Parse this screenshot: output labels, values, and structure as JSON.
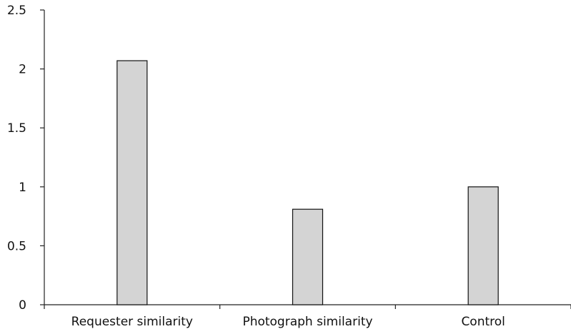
{
  "chart_data": {
    "type": "bar",
    "title": "",
    "xlabel": "",
    "ylabel": "",
    "categories": [
      "Requester similarity",
      "Photograph similarity",
      "Control"
    ],
    "values": [
      2.07,
      0.81,
      1.0
    ],
    "ylim": [
      0,
      2.5
    ],
    "yticks": [
      0,
      0.5,
      1,
      1.5,
      2,
      2.5
    ],
    "ytick_labels": [
      "0",
      "0.5",
      "1",
      "1.5",
      "2",
      "2.5"
    ],
    "grid": false,
    "legend": "none",
    "bar_color": "#d4d4d4",
    "bar_edge_color": "#111111"
  }
}
